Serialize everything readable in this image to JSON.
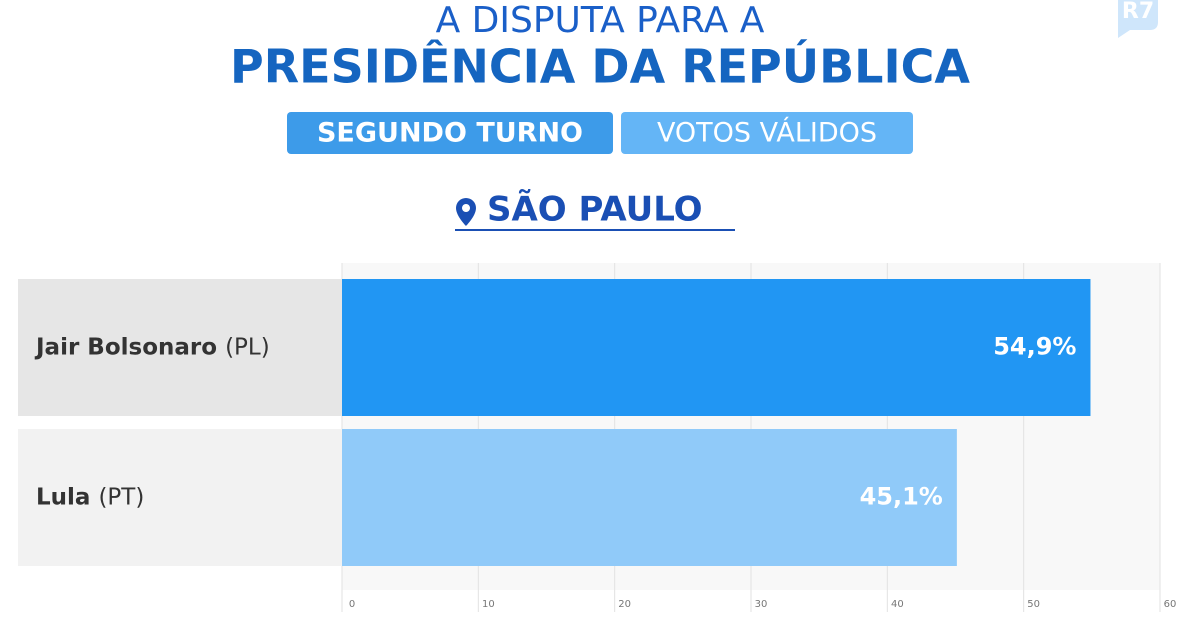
{
  "logo": "R7",
  "chart_data": {
    "type": "bar",
    "title": "A DISPUTA PARA A",
    "subtitle": "PRESIDÊNCIA DA REPÚBLICA",
    "badges": [
      "SEGUNDO TURNO",
      "VOTOS VÁLIDOS"
    ],
    "location": "SÃO PAULO",
    "categories": [
      "Jair Bolsonaro",
      "Lula"
    ],
    "parties": [
      "(PL)",
      "(PT)"
    ],
    "values": [
      54.9,
      45.1
    ],
    "value_labels": [
      "54,9%",
      "45,1%"
    ],
    "colors": [
      "#2196f3",
      "#90caf9"
    ],
    "xlim": [
      0,
      60
    ],
    "xticks": [
      0,
      10,
      20,
      30,
      40,
      50,
      60
    ],
    "grid": true
  }
}
